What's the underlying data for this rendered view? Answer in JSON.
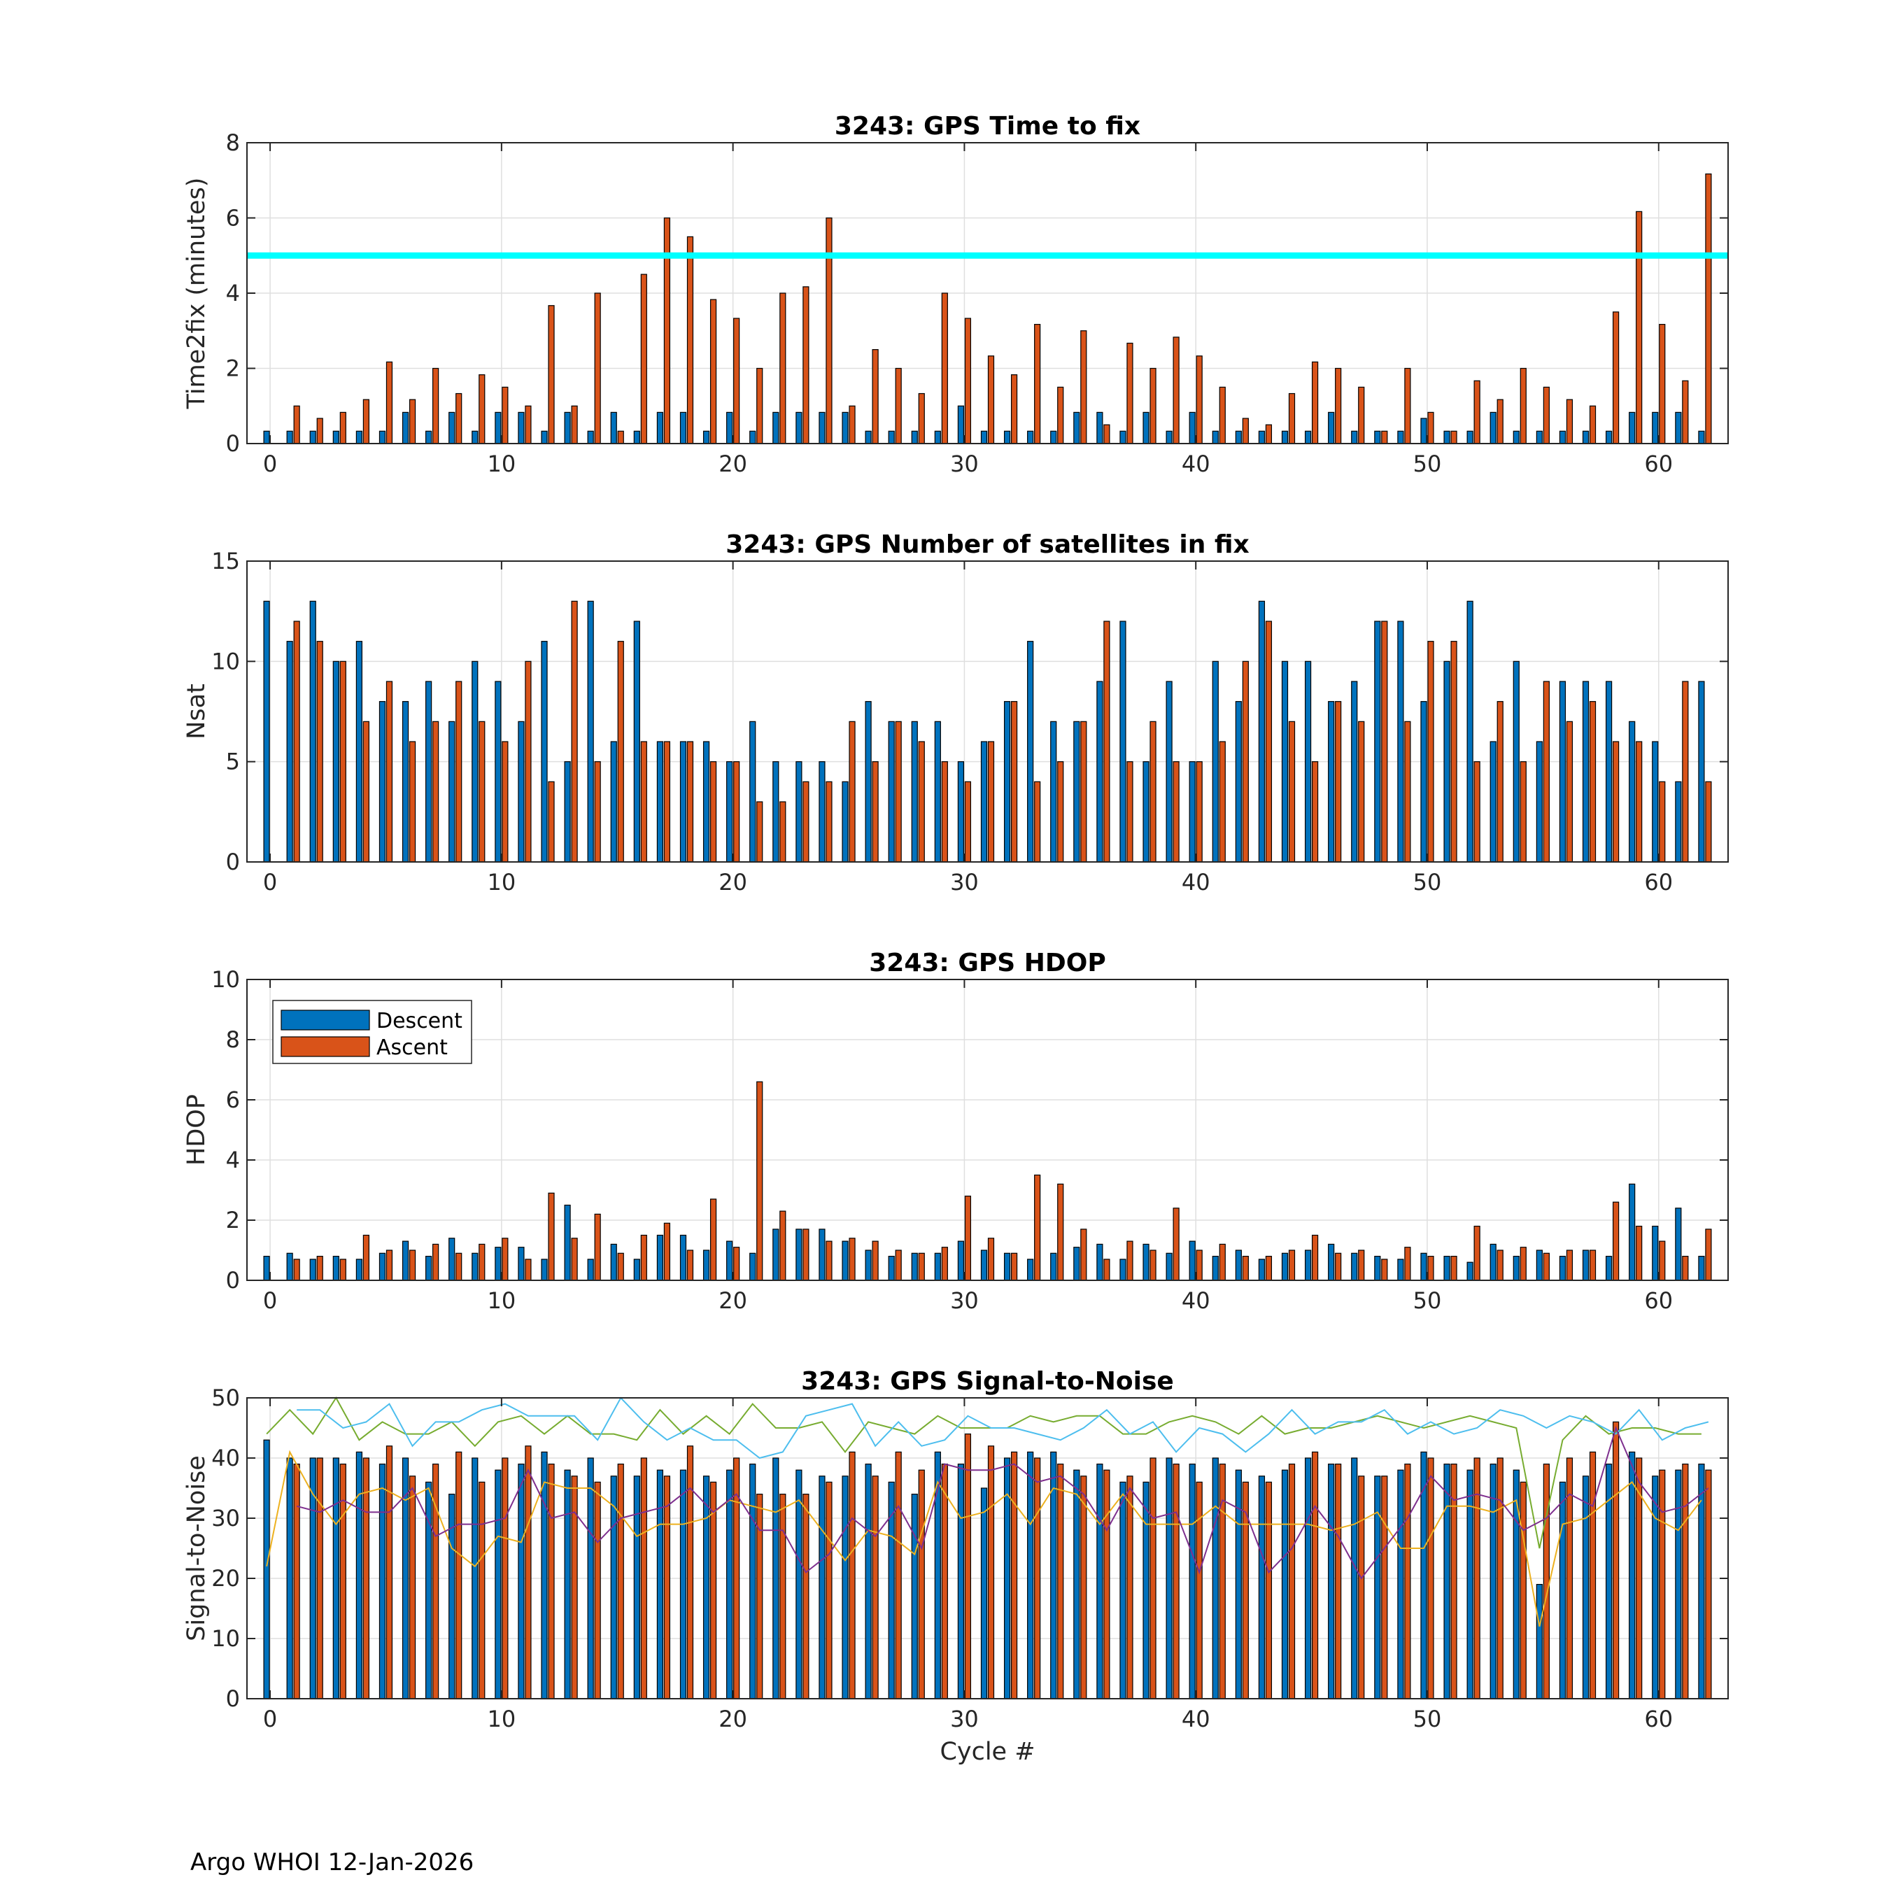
{
  "figure": {
    "footer": "Argo WHOI 12-Jan-2026",
    "colors": {
      "descent": "#0072BD",
      "ascent": "#D95319",
      "threshold": "#00FFFF",
      "snr_green": "#77AC30",
      "snr_cyan": "#4DBEEE",
      "snr_yellow": "#EDB120",
      "snr_purple": "#7E2F8E"
    },
    "legend": {
      "descent": "Descent",
      "ascent": "Ascent"
    }
  },
  "chart_data": [
    {
      "type": "bar",
      "title": "3243: GPS Time to fix",
      "ylabel": "Time2fix (minutes)",
      "xlabel": "",
      "xlim": [
        -1,
        63
      ],
      "ylim": [
        0,
        8
      ],
      "yticks": [
        0,
        2,
        4,
        6,
        8
      ],
      "xticks": [
        0,
        10,
        20,
        30,
        40,
        50,
        60
      ],
      "threshold": 5,
      "series": [
        {
          "name": "Descent",
          "values": [
            0.33,
            0.33,
            0.33,
            0.33,
            0.33,
            0.33,
            0.83,
            0.33,
            0.83,
            0.33,
            0.83,
            0.83,
            0.33,
            0.83,
            0.33,
            0.83,
            0.33,
            0.83,
            0.83,
            0.33,
            0.83,
            0.33,
            0.83,
            0.83,
            0.83,
            0.83,
            0.33,
            0.33,
            0.33,
            0.33,
            1.0,
            0.33,
            0.33,
            0.33,
            0.33,
            0.83,
            0.83,
            0.33,
            0.83,
            0.33,
            0.83,
            0.33,
            0.33,
            0.33,
            0.33,
            0.33,
            0.83,
            0.33,
            0.33,
            0.33,
            0.67,
            0.33,
            0.33,
            0.83,
            0.33,
            0.33,
            0.33,
            0.33,
            0.33,
            0.83,
            0.83,
            0.83,
            0.33
          ]
        },
        {
          "name": "Ascent",
          "values": [
            null,
            1.0,
            0.67,
            0.83,
            1.17,
            2.17,
            1.17,
            2.0,
            1.33,
            1.83,
            1.5,
            1.0,
            3.67,
            1.0,
            4.0,
            0.33,
            4.5,
            6.0,
            5.5,
            3.83,
            3.33,
            2.0,
            4.0,
            4.17,
            6.0,
            1.0,
            2.5,
            2.0,
            1.33,
            4.0,
            3.33,
            2.33,
            1.83,
            3.17,
            1.5,
            3.0,
            0.5,
            2.67,
            2.0,
            2.83,
            2.33,
            1.5,
            0.67,
            0.5,
            1.33,
            2.17,
            2.0,
            1.5,
            0.33,
            2.0,
            0.83,
            0.33,
            1.67,
            1.17,
            2.0,
            1.5,
            1.17,
            1.0,
            3.5,
            6.17,
            3.17,
            1.67,
            7.17
          ]
        }
      ]
    },
    {
      "type": "bar",
      "title": "3243: GPS Number of satellites in fix",
      "ylabel": "Nsat",
      "xlabel": "",
      "xlim": [
        -1,
        63
      ],
      "ylim": [
        0,
        15
      ],
      "yticks": [
        0,
        5,
        10,
        15
      ],
      "xticks": [
        0,
        10,
        20,
        30,
        40,
        50,
        60
      ],
      "series": [
        {
          "name": "Descent",
          "values": [
            13,
            11,
            13,
            10,
            11,
            8,
            8,
            9,
            7,
            10,
            9,
            7,
            11,
            5,
            13,
            6,
            12,
            6,
            6,
            6,
            5,
            7,
            5,
            5,
            5,
            4,
            8,
            7,
            7,
            7,
            5,
            6,
            8,
            11,
            7,
            7,
            9,
            12,
            5,
            9,
            5,
            10,
            8,
            13,
            10,
            10,
            8,
            9,
            12,
            12,
            8,
            10,
            13,
            6,
            10,
            6,
            9,
            9,
            9,
            7,
            6,
            4,
            9
          ]
        },
        {
          "name": "Ascent",
          "values": [
            null,
            12,
            11,
            10,
            7,
            9,
            6,
            7,
            9,
            7,
            6,
            10,
            4,
            13,
            5,
            11,
            6,
            6,
            6,
            5,
            5,
            3,
            3,
            4,
            4,
            7,
            5,
            7,
            6,
            5,
            4,
            6,
            8,
            4,
            5,
            7,
            12,
            5,
            7,
            5,
            5,
            6,
            10,
            12,
            7,
            5,
            8,
            7,
            12,
            7,
            11,
            11,
            5,
            8,
            5,
            9,
            7,
            8,
            6,
            6,
            4,
            9,
            4
          ]
        }
      ]
    },
    {
      "type": "bar",
      "title": "3243: GPS HDOP",
      "ylabel": "HDOP",
      "xlabel": "",
      "xlim": [
        -1,
        63
      ],
      "ylim": [
        0,
        10
      ],
      "yticks": [
        0,
        2,
        4,
        6,
        8,
        10
      ],
      "xticks": [
        0,
        10,
        20,
        30,
        40,
        50,
        60
      ],
      "legend": [
        "Descent",
        "Ascent"
      ],
      "legend_position": "top-left",
      "series": [
        {
          "name": "Descent",
          "values": [
            0.8,
            0.9,
            0.7,
            0.8,
            0.7,
            0.9,
            1.3,
            0.8,
            1.4,
            0.9,
            1.1,
            1.1,
            0.7,
            2.5,
            0.7,
            1.2,
            0.7,
            1.5,
            1.5,
            1.0,
            1.3,
            0.9,
            1.7,
            1.7,
            1.7,
            1.3,
            1.0,
            0.8,
            0.9,
            0.9,
            1.3,
            1.0,
            0.9,
            0.7,
            0.9,
            1.1,
            1.2,
            0.7,
            1.2,
            0.9,
            1.3,
            0.8,
            1.0,
            0.7,
            0.9,
            1.0,
            1.2,
            0.9,
            0.8,
            0.7,
            0.9,
            0.8,
            0.6,
            1.2,
            0.8,
            1.0,
            0.8,
            1.0,
            0.8,
            3.2,
            1.8,
            2.4,
            0.8
          ]
        },
        {
          "name": "Ascent",
          "values": [
            null,
            0.7,
            0.8,
            0.7,
            1.5,
            1.0,
            1.0,
            1.2,
            0.9,
            1.2,
            1.4,
            0.7,
            2.9,
            1.4,
            2.2,
            0.9,
            1.5,
            1.9,
            1.0,
            2.7,
            1.1,
            6.6,
            2.3,
            1.7,
            1.3,
            1.4,
            1.3,
            1.0,
            0.9,
            1.1,
            2.8,
            1.4,
            0.9,
            3.5,
            3.2,
            1.7,
            0.7,
            1.3,
            1.0,
            2.4,
            1.0,
            1.2,
            0.8,
            0.8,
            1.0,
            1.5,
            0.9,
            1.0,
            0.7,
            1.1,
            0.8,
            0.8,
            1.8,
            1.0,
            1.1,
            0.9,
            1.0,
            1.0,
            2.6,
            1.8,
            1.3,
            0.8,
            1.7
          ]
        }
      ]
    },
    {
      "type": "bar",
      "title": "3243: GPS Signal-to-Noise",
      "ylabel": "Signal-to-Noise",
      "xlabel": "Cycle #",
      "xlim": [
        -1,
        63
      ],
      "ylim": [
        0,
        50
      ],
      "yticks": [
        0,
        10,
        20,
        30,
        40,
        50
      ],
      "xticks": [
        0,
        10,
        20,
        30,
        40,
        50,
        60
      ],
      "series": [
        {
          "name": "Descent",
          "values": [
            43,
            40,
            40,
            40,
            41,
            39,
            40,
            36,
            34,
            40,
            38,
            39,
            41,
            38,
            40,
            37,
            37,
            38,
            38,
            37,
            38,
            39,
            40,
            38,
            37,
            37,
            39,
            36,
            34,
            41,
            39,
            35,
            40,
            41,
            41,
            38,
            39,
            36,
            36,
            40,
            39,
            40,
            38,
            37,
            38,
            40,
            39,
            40,
            37,
            38,
            41,
            39,
            38,
            39,
            38,
            19,
            36,
            37,
            39,
            41,
            37,
            38,
            39
          ]
        },
        {
          "name": "Ascent",
          "values": [
            null,
            39,
            40,
            39,
            40,
            42,
            37,
            39,
            41,
            36,
            40,
            42,
            39,
            37,
            36,
            39,
            40,
            37,
            42,
            36,
            40,
            34,
            34,
            34,
            36,
            41,
            37,
            41,
            38,
            39,
            44,
            42,
            41,
            40,
            39,
            37,
            38,
            37,
            40,
            39,
            36,
            39,
            36,
            36,
            39,
            41,
            39,
            37,
            37,
            39,
            40,
            39,
            40,
            40,
            36,
            39,
            40,
            41,
            46,
            40,
            38,
            39,
            38
          ]
        },
        {
          "name": "Descent max",
          "type": "line",
          "values": [
            44,
            48,
            44,
            50,
            43,
            46,
            44,
            44,
            46,
            42,
            46,
            47,
            44,
            47,
            44,
            44,
            43,
            48,
            44,
            47,
            44,
            49,
            45,
            45,
            46,
            41,
            46,
            45,
            44,
            47,
            45,
            45,
            45,
            47,
            46,
            47,
            47,
            44,
            44,
            46,
            47,
            46,
            44,
            47,
            44,
            45,
            45,
            46,
            47,
            46,
            45,
            46,
            47,
            46,
            45,
            25,
            43,
            47,
            44,
            45,
            45,
            44,
            44
          ]
        },
        {
          "name": "Ascent max",
          "type": "line",
          "values": [
            null,
            48,
            48,
            45,
            46,
            49,
            42,
            46,
            46,
            48,
            49,
            47,
            47,
            47,
            43,
            50,
            46,
            43,
            45,
            43,
            43,
            40,
            41,
            47,
            48,
            49,
            42,
            46,
            42,
            43,
            47,
            45,
            45,
            44,
            43,
            45,
            48,
            44,
            46,
            41,
            45,
            44,
            41,
            44,
            48,
            44,
            46,
            46,
            48,
            44,
            46,
            44,
            45,
            48,
            47,
            45,
            47,
            46,
            44,
            48,
            43,
            45,
            46
          ]
        },
        {
          "name": "Descent mean",
          "type": "line",
          "values": [
            22,
            41,
            34,
            29,
            34,
            35,
            33,
            35,
            25,
            22,
            27,
            26,
            36,
            35,
            35,
            32,
            27,
            29,
            29,
            30,
            33,
            32,
            31,
            33,
            28,
            23,
            28,
            27,
            24,
            36,
            30,
            31,
            34,
            29,
            35,
            34,
            29,
            34,
            29,
            29,
            29,
            32,
            29,
            29,
            29,
            29,
            28,
            29,
            31,
            25,
            25,
            32,
            32,
            31,
            33,
            12,
            29,
            30,
            33,
            36,
            30,
            28,
            33
          ]
        },
        {
          "name": "Ascent mean",
          "type": "line",
          "values": [
            null,
            32,
            31,
            33,
            31,
            31,
            35,
            27,
            29,
            29,
            30,
            38,
            30,
            31,
            26,
            30,
            31,
            32,
            35,
            31,
            34,
            28,
            28,
            21,
            24,
            30,
            27,
            32,
            25,
            39,
            38,
            38,
            39,
            36,
            37,
            34,
            28,
            35,
            30,
            31,
            21,
            33,
            31,
            21,
            25,
            32,
            27,
            20,
            25,
            30,
            37,
            33,
            34,
            33,
            28,
            30,
            34,
            32,
            45,
            36,
            31,
            32,
            35
          ]
        }
      ]
    }
  ]
}
